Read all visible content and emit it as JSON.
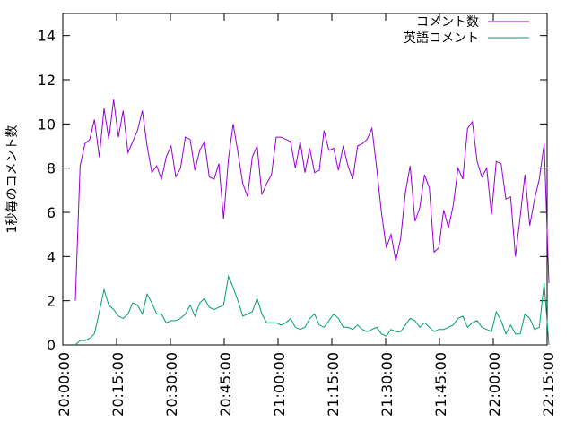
{
  "chart_data": {
    "type": "line",
    "ylabel": "1秒毎のコメント数",
    "xlabel": "",
    "xlim": [
      "20:00:00",
      "22:15:00"
    ],
    "ylim": [
      0,
      15
    ],
    "x_ticks": [
      "20:00:00",
      "20:15:00",
      "20:30:00",
      "20:45:00",
      "21:00:00",
      "21:15:00",
      "21:30:00",
      "21:45:00",
      "22:00:00",
      "22:15:00"
    ],
    "y_ticks": [
      "0",
      "2",
      "4",
      "6",
      "8",
      "10",
      "12",
      "14"
    ],
    "grid": false,
    "legend_position": "top-right",
    "x_start": "20:03:30",
    "x_step_seconds": 80,
    "series": [
      {
        "name": "コメント数",
        "color": "#9400d3",
        "values": [
          2.0,
          8.1,
          9.1,
          9.3,
          10.2,
          8.5,
          10.7,
          9.3,
          11.1,
          9.4,
          10.6,
          8.7,
          9.2,
          9.7,
          10.6,
          9.0,
          7.8,
          8.1,
          7.5,
          8.5,
          9.0,
          7.6,
          8.0,
          9.4,
          9.3,
          7.9,
          8.8,
          9.2,
          7.6,
          7.5,
          8.2,
          5.7,
          8.4,
          10.0,
          8.7,
          7.3,
          6.7,
          8.5,
          9.0,
          6.8,
          7.3,
          7.7,
          9.4,
          9.4,
          9.3,
          9.2,
          8.0,
          9.2,
          7.8,
          8.9,
          7.8,
          7.9,
          9.7,
          8.8,
          8.9,
          7.9,
          9.0,
          8.1,
          7.5,
          9.0,
          9.1,
          9.3,
          9.8,
          8.0,
          6.0,
          4.4,
          5.0,
          3.8,
          4.8,
          6.9,
          8.1,
          5.6,
          6.2,
          7.7,
          7.1,
          4.2,
          4.4,
          6.1,
          5.3,
          6.3,
          8.0,
          7.5,
          9.8,
          10.1,
          8.3,
          7.6,
          8.0,
          5.9,
          8.3,
          8.2,
          6.6,
          6.7,
          4.0,
          5.8,
          7.7,
          5.4,
          6.6,
          7.5,
          9.1,
          2.8
        ]
      },
      {
        "name": "英語コメント",
        "color": "#009e73",
        "values": [
          0.0,
          0.2,
          0.2,
          0.3,
          0.5,
          1.5,
          2.5,
          1.8,
          1.6,
          1.3,
          1.2,
          1.4,
          1.9,
          1.8,
          1.4,
          2.3,
          1.9,
          1.4,
          1.4,
          1.0,
          1.1,
          1.1,
          1.2,
          1.4,
          1.8,
          1.3,
          1.9,
          2.1,
          1.7,
          1.6,
          1.7,
          1.8,
          3.1,
          2.6,
          2.0,
          1.3,
          1.4,
          1.5,
          2.1,
          1.4,
          1.0,
          1.0,
          1.0,
          0.9,
          1.0,
          1.2,
          0.8,
          0.7,
          0.8,
          1.2,
          1.4,
          0.9,
          0.8,
          1.1,
          1.4,
          1.2,
          0.8,
          0.8,
          0.7,
          0.9,
          0.7,
          0.6,
          0.7,
          0.8,
          0.5,
          0.4,
          0.7,
          0.6,
          0.6,
          0.9,
          1.2,
          1.1,
          0.8,
          1.0,
          0.8,
          0.6,
          0.7,
          0.7,
          0.8,
          0.9,
          1.2,
          1.3,
          0.8,
          1.0,
          1.1,
          0.8,
          0.7,
          0.6,
          1.5,
          1.1,
          0.5,
          0.9,
          0.5,
          0.5,
          1.4,
          1.2,
          0.7,
          0.8,
          2.8,
          0.0
        ]
      }
    ]
  }
}
